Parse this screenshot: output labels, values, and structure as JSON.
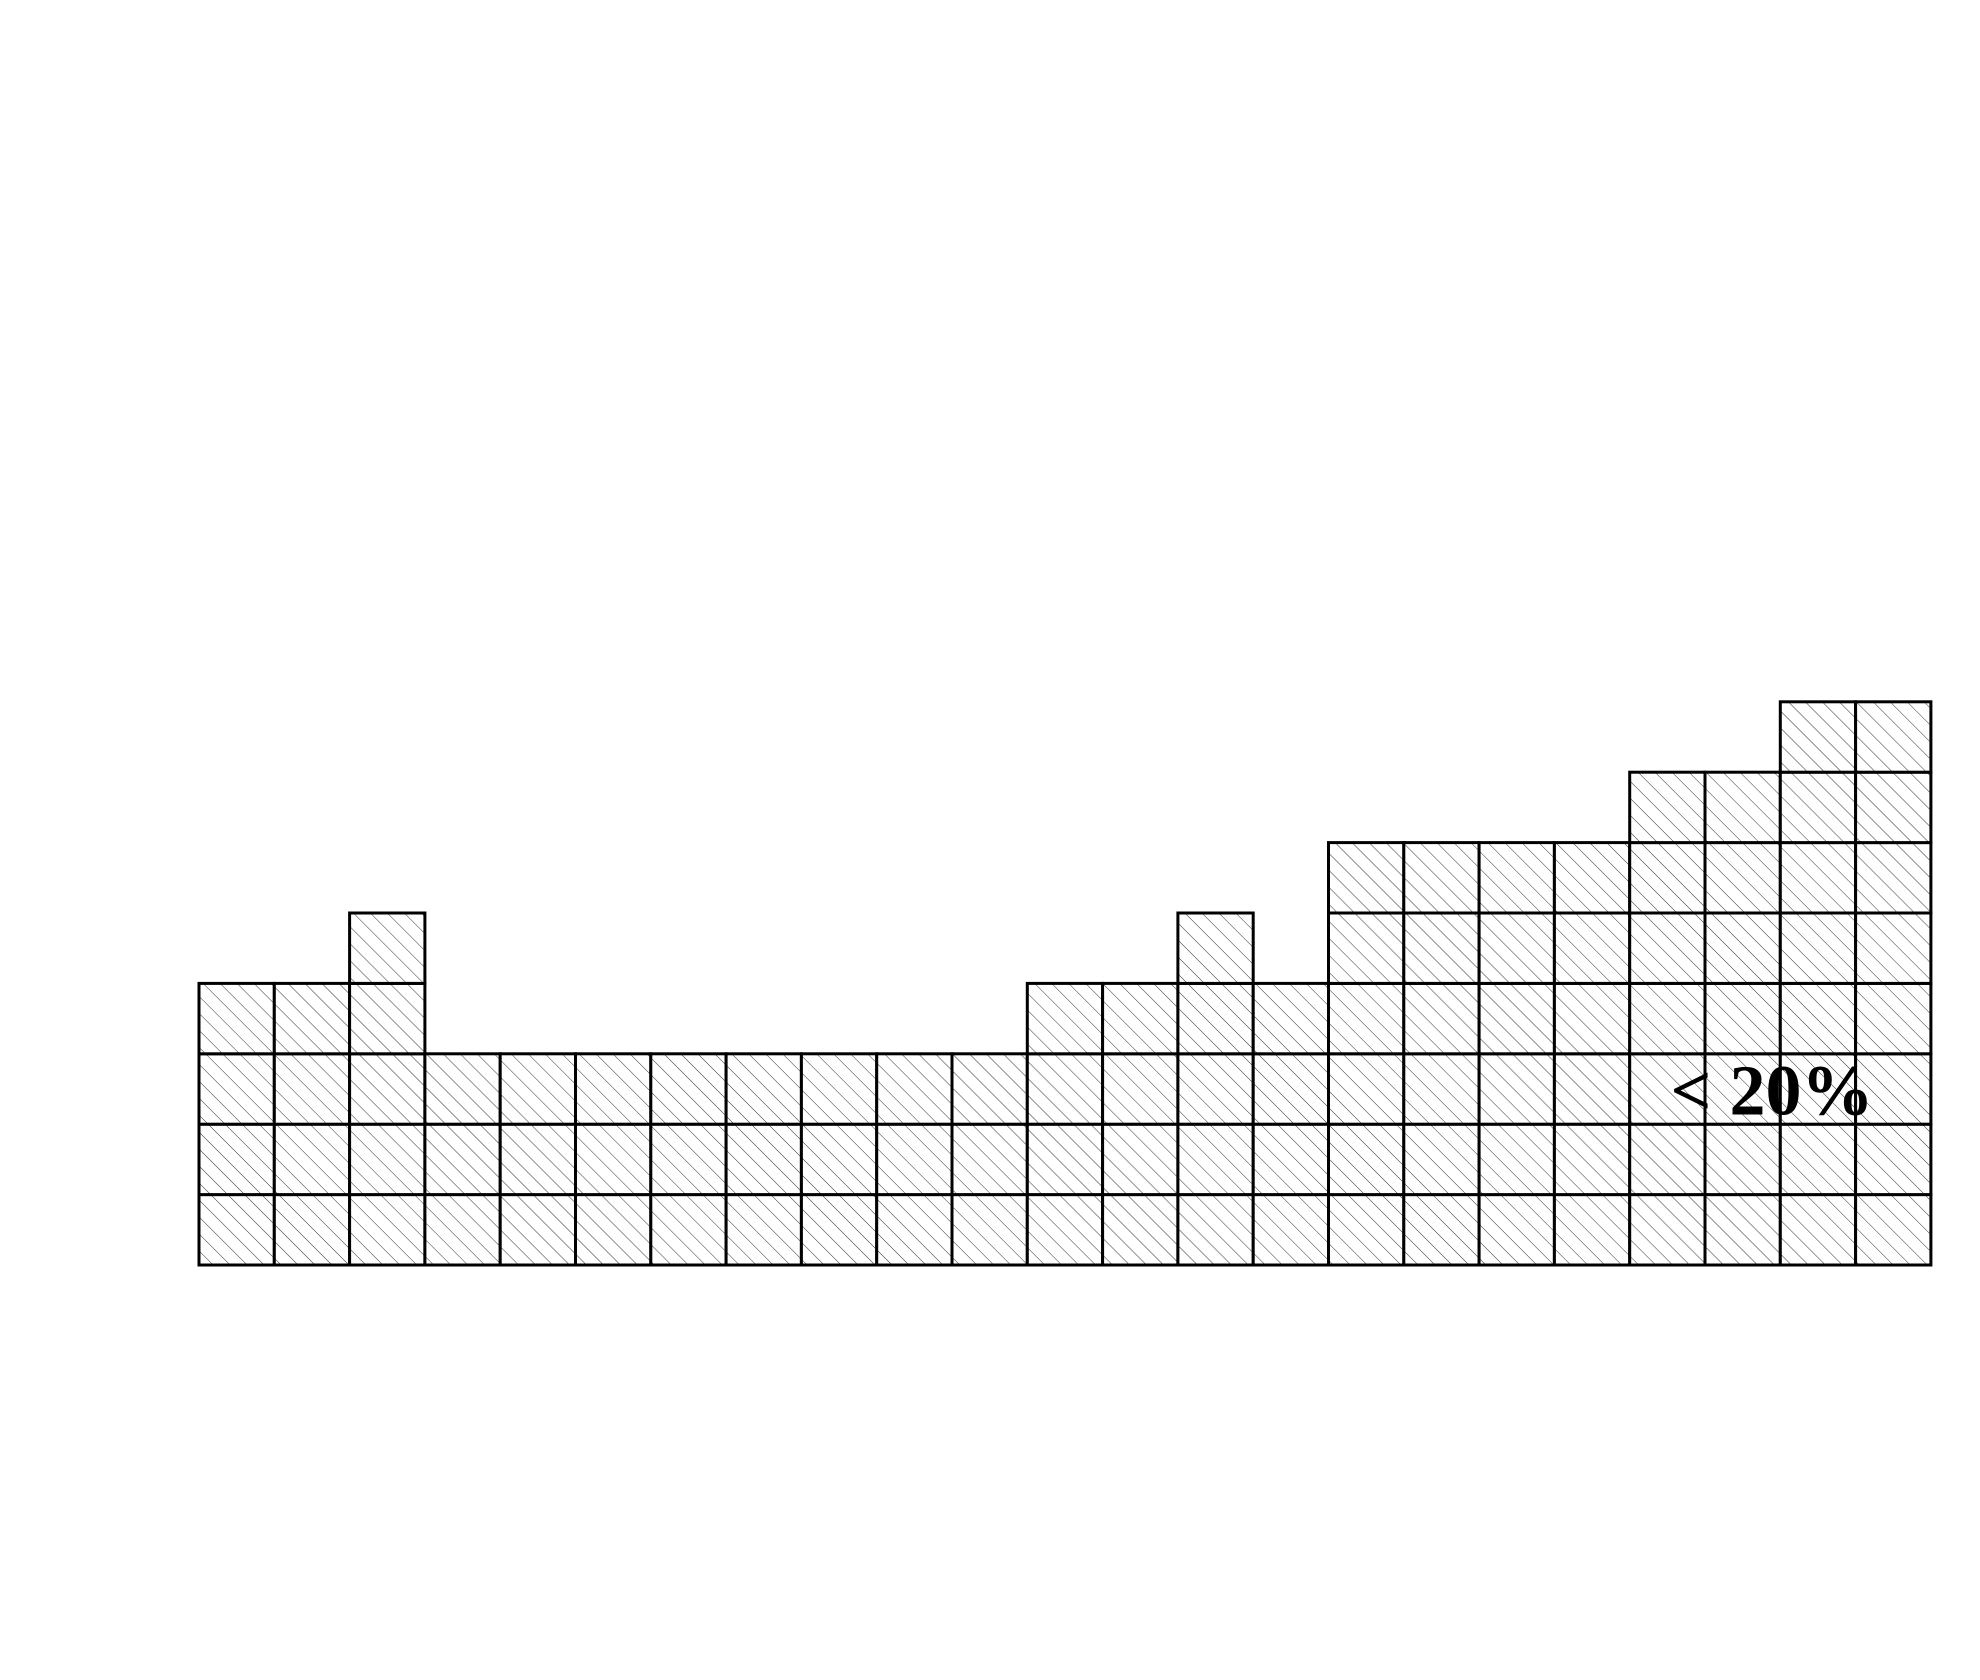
{
  "chart_data": {
    "type": "unit-column",
    "values": [
      4,
      4,
      5,
      3,
      3,
      3,
      3,
      3,
      3,
      3,
      3,
      4,
      4,
      5,
      4,
      6,
      6,
      6,
      6,
      7,
      7,
      8,
      8
    ],
    "annotation": "< 20%",
    "color": "#000000"
  }
}
